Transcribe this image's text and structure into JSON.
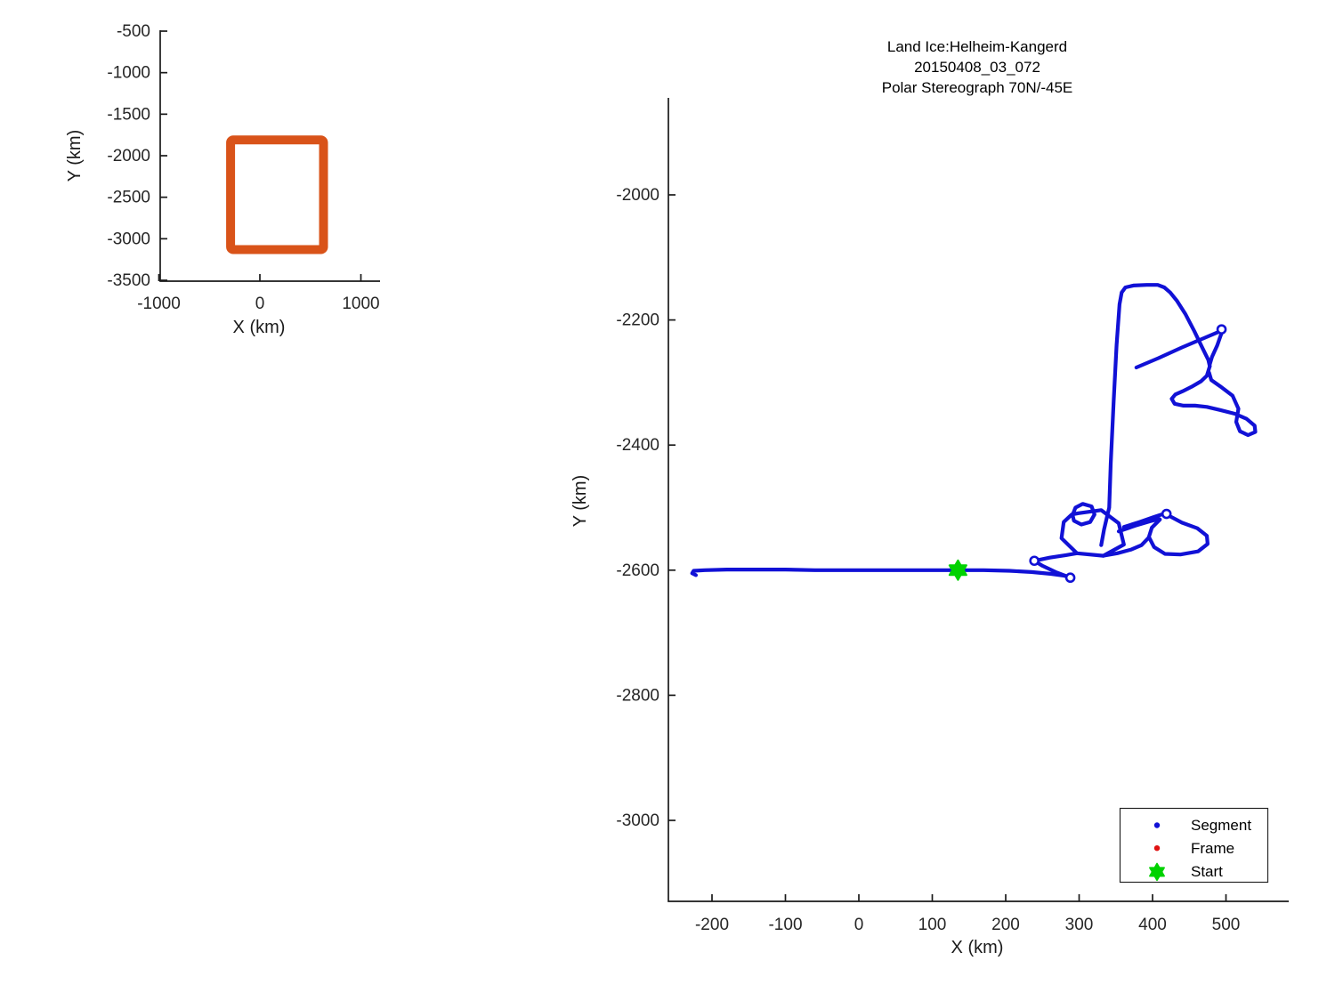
{
  "figure": {
    "background": "#ffffff",
    "axis_color": "#1a1a1a",
    "tick_text_color": "#262626"
  },
  "chart_data": [
    {
      "id": "overview",
      "type": "line",
      "xlabel": "X (km)",
      "ylabel": "Y (km)",
      "xticks": [
        -1000,
        0,
        1000
      ],
      "yticks": [
        -500,
        -1000,
        -1500,
        -2000,
        -2500,
        -3000,
        -3500
      ],
      "xlim": [
        -990,
        1190
      ],
      "ylim": [
        -3510,
        -495
      ],
      "grid": "off",
      "series": [
        {
          "name": "coverage-box",
          "color": "#D95319",
          "rect_x": [
            -290,
            630
          ],
          "rect_y": [
            -3130,
            -1810
          ]
        }
      ]
    },
    {
      "id": "main",
      "type": "scatter",
      "title_lines": [
        "Land Ice:Helheim-Kangerd",
        "20150408_03_072",
        "Polar Stereograph 70N/-45E"
      ],
      "xlabel": "X (km)",
      "ylabel": "Y (km)",
      "xticks": [
        -200,
        -100,
        0,
        100,
        200,
        300,
        400,
        500
      ],
      "yticks": [
        -2000,
        -2200,
        -2400,
        -2600,
        -2800,
        -3000
      ],
      "xlim": [
        -258,
        585
      ],
      "ylim": [
        -3130,
        -1848
      ],
      "grid": "off",
      "segment_color": "#1111D6",
      "frame_color": "#E01212",
      "start_color": "#00D200",
      "start": {
        "x": 135,
        "y": -2600
      },
      "legend": {
        "position": "bottom-right",
        "entries": [
          {
            "label": "Segment",
            "marker": "dot",
            "color": "#1111D6"
          },
          {
            "label": "Frame",
            "marker": "dot",
            "color": "#E01212"
          },
          {
            "label": "Start",
            "marker": "hexagram",
            "color": "#00D200"
          }
        ]
      },
      "endpoint_circles": [
        [
          288,
          -2612
        ],
        [
          239,
          -2585
        ],
        [
          494,
          -2215
        ],
        [
          419,
          -2510
        ]
      ],
      "segments": [
        {
          "name": "long-transit-line",
          "points": [
            [
              -222,
              -2608
            ],
            [
              -227,
              -2605
            ],
            [
              -225,
              -2601
            ],
            [
              -210,
              -2600
            ],
            [
              -180,
              -2599
            ],
            [
              -140,
              -2599
            ],
            [
              -100,
              -2599
            ],
            [
              -60,
              -2600
            ],
            [
              -20,
              -2600
            ],
            [
              20,
              -2600
            ],
            [
              60,
              -2600
            ],
            [
              100,
              -2600
            ],
            [
              135,
              -2600
            ],
            [
              170,
              -2600
            ],
            [
              205,
              -2601
            ],
            [
              235,
              -2603
            ],
            [
              262,
              -2606
            ],
            [
              280,
              -2609
            ],
            [
              288,
              -2612
            ]
          ]
        },
        {
          "name": "zigzag-leg",
          "points": [
            [
              288,
              -2612
            ],
            [
              268,
              -2603
            ],
            [
              250,
              -2593
            ],
            [
              239,
              -2585
            ]
          ]
        },
        {
          "name": "to-cluster-leg",
          "points": [
            [
              239,
              -2585
            ],
            [
              260,
              -2580
            ],
            [
              282,
              -2576
            ],
            [
              297,
              -2573
            ]
          ]
        },
        {
          "name": "cluster-pentagon-loop",
          "points": [
            [
              299,
              -2509
            ],
            [
              330,
              -2504
            ],
            [
              354,
              -2525
            ],
            [
              361,
              -2559
            ],
            [
              333,
              -2577
            ],
            [
              297,
              -2573
            ],
            [
              276,
              -2549
            ],
            [
              279,
              -2523
            ],
            [
              290,
              -2511
            ],
            [
              299,
              -2509
            ]
          ]
        },
        {
          "name": "cluster-mini-loop",
          "points": [
            [
              291,
              -2512
            ],
            [
              295,
              -2500
            ],
            [
              305,
              -2494
            ],
            [
              317,
              -2498
            ],
            [
              321,
              -2511
            ],
            [
              315,
              -2523
            ],
            [
              303,
              -2527
            ],
            [
              293,
              -2521
            ],
            [
              291,
              -2512
            ]
          ]
        },
        {
          "name": "climb-plateau-descent",
          "points": [
            [
              330,
              -2560
            ],
            [
              334,
              -2535
            ],
            [
              338,
              -2515
            ],
            [
              341,
              -2500
            ],
            [
              343,
              -2430
            ],
            [
              347,
              -2330
            ],
            [
              351,
              -2240
            ],
            [
              355,
              -2175
            ],
            [
              358,
              -2156
            ],
            [
              363,
              -2148
            ],
            [
              374,
              -2145
            ],
            [
              392,
              -2144
            ],
            [
              407,
              -2144
            ],
            [
              416,
              -2148
            ],
            [
              424,
              -2156
            ],
            [
              433,
              -2169
            ],
            [
              445,
              -2191
            ],
            [
              457,
              -2218
            ],
            [
              468,
              -2245
            ],
            [
              476,
              -2264
            ],
            [
              478,
              -2274
            ]
          ]
        },
        {
          "name": "fish-loop",
          "points": [
            [
              478,
              -2274
            ],
            [
              474,
              -2289
            ],
            [
              466,
              -2298
            ],
            [
              453,
              -2307
            ],
            [
              441,
              -2314
            ],
            [
              431,
              -2319
            ],
            [
              426,
              -2326
            ],
            [
              430,
              -2334
            ],
            [
              442,
              -2337
            ],
            [
              458,
              -2337
            ],
            [
              474,
              -2339
            ],
            [
              492,
              -2344
            ],
            [
              512,
              -2350
            ],
            [
              528,
              -2358
            ],
            [
              539,
              -2369
            ],
            [
              540,
              -2379
            ],
            [
              530,
              -2384
            ],
            [
              519,
              -2378
            ],
            [
              514,
              -2363
            ],
            [
              517,
              -2342
            ],
            [
              509,
              -2321
            ],
            [
              492,
              -2306
            ],
            [
              480,
              -2296
            ],
            [
              477,
              -2284
            ]
          ]
        },
        {
          "name": "cross-diagonal",
          "points": [
            [
              378,
              -2276
            ],
            [
              408,
              -2261
            ],
            [
              440,
              -2244
            ],
            [
              470,
              -2229
            ],
            [
              492,
              -2218
            ]
          ]
        },
        {
          "name": "circle-to-junction",
          "points": [
            [
              494,
              -2221
            ],
            [
              488,
              -2241
            ],
            [
              481,
              -2259
            ],
            [
              478,
              -2271
            ]
          ]
        },
        {
          "name": "wedge-diagonal-a",
          "points": [
            [
              361,
              -2531
            ],
            [
              382,
              -2523
            ],
            [
              402,
              -2515
            ],
            [
              415,
              -2510
            ]
          ]
        },
        {
          "name": "wedge-diagonal-b",
          "points": [
            [
              354,
              -2538
            ],
            [
              376,
              -2529
            ],
            [
              396,
              -2522
            ],
            [
              409,
              -2518
            ]
          ]
        },
        {
          "name": "right-loop",
          "points": [
            [
              419,
              -2511
            ],
            [
              440,
              -2524
            ],
            [
              461,
              -2533
            ],
            [
              474,
              -2545
            ],
            [
              475,
              -2558
            ],
            [
              462,
              -2570
            ],
            [
              438,
              -2575
            ],
            [
              417,
              -2574
            ],
            [
              402,
              -2563
            ],
            [
              395,
              -2547
            ],
            [
              399,
              -2532
            ],
            [
              410,
              -2519
            ]
          ]
        },
        {
          "name": "cluster-bottom-connector",
          "points": [
            [
              333,
              -2577
            ],
            [
              352,
              -2573
            ],
            [
              371,
              -2567
            ],
            [
              385,
              -2560
            ],
            [
              394,
              -2549
            ]
          ]
        }
      ]
    }
  ]
}
